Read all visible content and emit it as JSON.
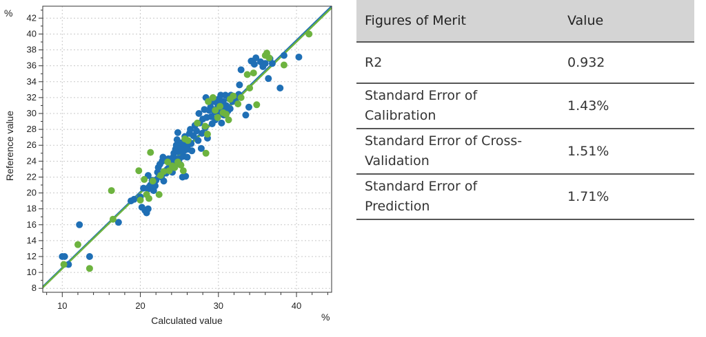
{
  "chart_data": {
    "type": "scatter",
    "title": "",
    "xlabel": "Calculated value",
    "ylabel": "Reference value",
    "x_unit": "%",
    "y_unit": "%",
    "xlim": [
      7.5,
      44.5
    ],
    "ylim": [
      7.5,
      43.5
    ],
    "x_ticks": [
      10,
      20,
      30,
      40
    ],
    "y_ticks": [
      8,
      10,
      12,
      14,
      16,
      18,
      20,
      22,
      24,
      26,
      28,
      30,
      32,
      34,
      36,
      38,
      40,
      42
    ],
    "grid": true,
    "fit_lines": [
      {
        "color": "#1f6fb5",
        "x": [
          7.5,
          44.5
        ],
        "y": [
          8.2,
          43.5
        ]
      },
      {
        "color": "#6db33f",
        "x": [
          7.5,
          44.5
        ],
        "y": [
          8.1,
          43.3
        ]
      }
    ],
    "series": [
      {
        "color": "#1f6fb5",
        "points": [
          [
            10,
            12
          ],
          [
            10.3,
            12
          ],
          [
            10.8,
            11
          ],
          [
            12.2,
            16
          ],
          [
            13.5,
            12
          ],
          [
            17.2,
            16.3
          ],
          [
            18.8,
            19
          ],
          [
            19.2,
            19.2
          ],
          [
            20,
            19.5
          ],
          [
            20.2,
            18.2
          ],
          [
            20.4,
            20.6
          ],
          [
            20.6,
            17.8
          ],
          [
            20.8,
            17.5
          ],
          [
            21,
            18
          ],
          [
            21,
            20.5
          ],
          [
            21,
            22.2
          ],
          [
            21.3,
            21
          ],
          [
            21.5,
            21.6
          ],
          [
            21.7,
            20.3
          ],
          [
            21.9,
            20.9
          ],
          [
            22,
            21.6
          ],
          [
            22.2,
            22.6
          ],
          [
            22.3,
            23.2
          ],
          [
            22.5,
            23.6
          ],
          [
            22.7,
            22
          ],
          [
            22.8,
            24
          ],
          [
            22.9,
            24.5
          ],
          [
            23,
            21.5
          ],
          [
            23.3,
            22.5
          ],
          [
            23.5,
            23
          ],
          [
            23.6,
            24.3
          ],
          [
            23.8,
            23.8
          ],
          [
            24,
            23
          ],
          [
            24.1,
            22.6
          ],
          [
            24.2,
            24.5
          ],
          [
            24.3,
            25
          ],
          [
            24.4,
            24
          ],
          [
            24.5,
            25.5
          ],
          [
            24.6,
            26
          ],
          [
            24.7,
            26.7
          ],
          [
            24.8,
            27.6
          ],
          [
            24.9,
            25.2
          ],
          [
            25,
            24.3
          ],
          [
            25.1,
            23.6
          ],
          [
            25.2,
            25.7
          ],
          [
            25.3,
            26.3
          ],
          [
            25.4,
            22
          ],
          [
            25.5,
            24.6
          ],
          [
            25.6,
            25.3
          ],
          [
            25.7,
            27.1
          ],
          [
            25.8,
            22.1
          ],
          [
            25.9,
            26
          ],
          [
            26,
            24.5
          ],
          [
            26.1,
            25.5
          ],
          [
            26.2,
            26.5
          ],
          [
            26.3,
            27.5
          ],
          [
            26.4,
            28
          ],
          [
            26.5,
            26.2
          ],
          [
            26.6,
            25.3
          ],
          [
            26.8,
            27.2
          ],
          [
            27,
            28.5
          ],
          [
            27.2,
            27.8
          ],
          [
            27.4,
            26.6
          ],
          [
            27.5,
            30
          ],
          [
            27.6,
            28.8
          ],
          [
            27.8,
            25.6
          ],
          [
            27.9,
            27.5
          ],
          [
            28,
            29.3
          ],
          [
            28.2,
            30.5
          ],
          [
            28.3,
            28.2
          ],
          [
            28.4,
            32
          ],
          [
            28.5,
            29.5
          ],
          [
            28.6,
            26.9
          ],
          [
            28.8,
            30.4
          ],
          [
            29,
            30.8
          ],
          [
            29.1,
            29.6
          ],
          [
            29.2,
            28.7
          ],
          [
            29.3,
            31.5
          ],
          [
            29.5,
            30.2
          ],
          [
            29.6,
            29.2
          ],
          [
            29.8,
            30.6
          ],
          [
            29.9,
            31.2
          ],
          [
            30,
            31.8
          ],
          [
            30.1,
            30
          ],
          [
            30.3,
            32.3
          ],
          [
            30.4,
            28.8
          ],
          [
            30.5,
            30.5
          ],
          [
            30.6,
            31.5
          ],
          [
            30.7,
            29.8
          ],
          [
            30.9,
            32.3
          ],
          [
            31,
            31
          ],
          [
            31.2,
            30.3
          ],
          [
            31.3,
            31.9
          ],
          [
            31.5,
            30.6
          ],
          [
            31.6,
            32.3
          ],
          [
            31.8,
            31.5
          ],
          [
            32.2,
            31.6
          ],
          [
            32.6,
            32.4
          ],
          [
            32.7,
            33.6
          ],
          [
            32.9,
            35.5
          ],
          [
            33.5,
            29.8
          ],
          [
            33.9,
            30.8
          ],
          [
            34.2,
            36.6
          ],
          [
            34.6,
            36.2
          ],
          [
            34.8,
            37
          ],
          [
            35.4,
            36.5
          ],
          [
            35.7,
            35.9
          ],
          [
            36,
            36.3
          ],
          [
            36.4,
            34.4
          ],
          [
            36.6,
            36.9
          ],
          [
            36.9,
            36.3
          ],
          [
            37.9,
            33.2
          ],
          [
            38.4,
            37.3
          ],
          [
            40.3,
            37.1
          ]
        ]
      },
      {
        "color": "#6db33f",
        "points": [
          [
            10.2,
            11
          ],
          [
            12,
            13.5
          ],
          [
            13.5,
            10.5
          ],
          [
            16.3,
            20.3
          ],
          [
            16.5,
            16.7
          ],
          [
            19.8,
            22.8
          ],
          [
            20,
            19.1
          ],
          [
            20.5,
            21.7
          ],
          [
            20.8,
            19.8
          ],
          [
            21.1,
            19.3
          ],
          [
            21.3,
            25.1
          ],
          [
            21.6,
            21.5
          ],
          [
            22.4,
            19.8
          ],
          [
            22.6,
            22.2
          ],
          [
            23,
            22.7
          ],
          [
            23.5,
            23.9
          ],
          [
            23.7,
            22.8
          ],
          [
            24.1,
            23.4
          ],
          [
            24.4,
            23.2
          ],
          [
            24.8,
            23.9
          ],
          [
            25.2,
            23.5
          ],
          [
            25.5,
            22.8
          ],
          [
            25.7,
            26.8
          ],
          [
            26.1,
            26.6
          ],
          [
            27.3,
            28.8
          ],
          [
            28.3,
            28.4
          ],
          [
            28.4,
            25
          ],
          [
            28.6,
            27.4
          ],
          [
            28.7,
            31.5
          ],
          [
            29.3,
            32
          ],
          [
            29.6,
            30.4
          ],
          [
            29.9,
            29.5
          ],
          [
            30.2,
            30.9
          ],
          [
            30.6,
            30.1
          ],
          [
            31,
            29.9
          ],
          [
            31.3,
            29.2
          ],
          [
            31.5,
            31.8
          ],
          [
            31.9,
            32.2
          ],
          [
            32.5,
            31.2
          ],
          [
            32.9,
            32
          ],
          [
            33.7,
            34.9
          ],
          [
            34,
            33.2
          ],
          [
            34.5,
            35.1
          ],
          [
            34.9,
            31.1
          ],
          [
            36,
            37.3
          ],
          [
            36.2,
            37.6
          ],
          [
            36.5,
            37
          ],
          [
            38.4,
            36.1
          ],
          [
            41.6,
            40
          ]
        ]
      }
    ]
  },
  "table": {
    "headers": [
      "Figures of Merit",
      "Value"
    ],
    "rows": [
      {
        "name_lines": [
          "R2"
        ],
        "value": "0.932"
      },
      {
        "name_lines": [
          "Standard Error of",
          "Calibration"
        ],
        "value": "1.43%"
      },
      {
        "name_lines": [
          "Standard Error of Cross-",
          "Validation"
        ],
        "value": "1.51%"
      },
      {
        "name_lines": [
          "Standard Error of",
          "Prediction"
        ],
        "value": "1.71%"
      }
    ]
  }
}
